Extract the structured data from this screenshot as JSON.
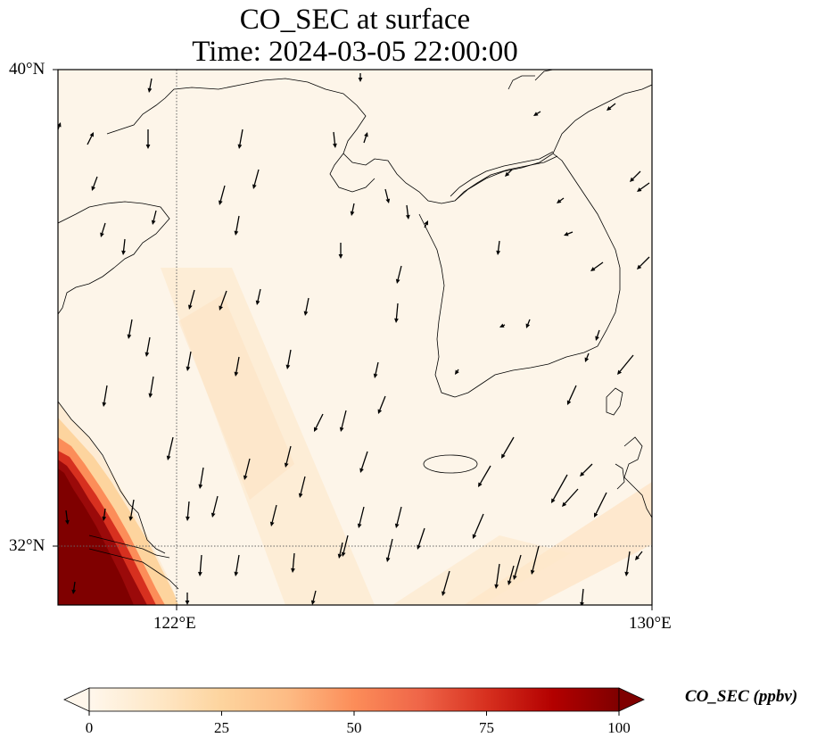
{
  "title": {
    "line1": "CO_SEC at surface",
    "line2": "Time: 2024-03-05 22:00:00"
  },
  "map": {
    "extent": {
      "lon_min": 119.5,
      "lon_max": 130,
      "lat_min": 31,
      "lat_max": 40
    },
    "lat_ticks": [
      {
        "value": 40,
        "label": "40°N"
      },
      {
        "value": 32,
        "label": "32°N"
      }
    ],
    "lon_ticks": [
      {
        "value": 122,
        "label": "122°E"
      },
      {
        "value": 130,
        "label": "130°E"
      }
    ],
    "gridlines": {
      "lon": [
        122
      ],
      "lat": [
        32
      ],
      "style": "dotted"
    },
    "colors": {
      "ocean_land_fill": "#fdf5e9",
      "coast": "#000000",
      "arrow": "#000000"
    },
    "field": "CO_SEC concentration, high along the southwest corner (Yangtze delta coast)"
  },
  "colorbar": {
    "label": "CO_SEC (ppbv)",
    "min": 0,
    "max": 100,
    "extend": "both",
    "cmap": "OrRd",
    "ticks": [
      "0",
      "25",
      "50",
      "75",
      "100"
    ],
    "stops": [
      "#fff7ec",
      "#fee8c8",
      "#fdd49e",
      "#fdbb84",
      "#fc8d59",
      "#ef6548",
      "#d7301f",
      "#b30000",
      "#7f0000"
    ]
  }
}
